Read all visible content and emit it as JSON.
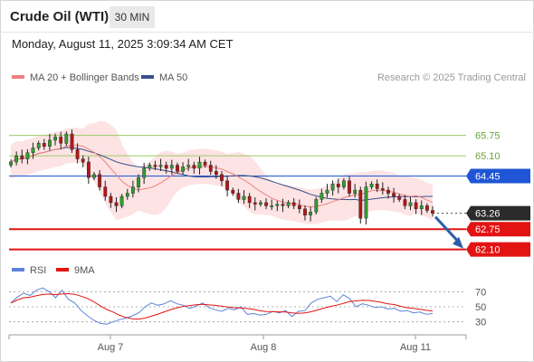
{
  "header": {
    "title": "Crude Oil (WTI)",
    "timeframe": "30 MIN",
    "datetime": "Monday, August 11, 2025 3:09:34 AM CET"
  },
  "legend": {
    "ma20_label": "MA 20 + Bollinger Bands",
    "ma50_label": "MA 50",
    "copyright": "Research © 2025 Trading Central"
  },
  "rsi_legend": {
    "rsi_label": "RSI",
    "ma_label": "9MA"
  },
  "colors": {
    "ma20": "#f08080",
    "ma50": "#3a4f8c",
    "band_fill": "#fde3e3",
    "candle_up": "#2f9e2f",
    "candle_down": "#b01818",
    "resistance": "#9ccc65",
    "pivot": "#1f55d6",
    "support": "#e31313",
    "rsi": "#5c84d6",
    "rsi_ma": "#e31313",
    "arrow": "#2a5ea8"
  },
  "chart_data": [
    {
      "type": "candlestick",
      "title": "Crude Oil (WTI)",
      "timeframe": "30 MIN",
      "ylim": [
        61.8,
        66.9
      ],
      "x_ticks": [
        "Aug 7",
        "Aug 8",
        "Aug 11"
      ],
      "close_series": [
        64.9,
        65.1,
        65.0,
        65.2,
        65.35,
        65.5,
        65.4,
        65.6,
        65.7,
        65.5,
        65.8,
        65.3,
        65.0,
        64.9,
        64.4,
        64.5,
        64.1,
        63.8,
        63.6,
        63.5,
        63.8,
        63.9,
        64.1,
        64.4,
        64.7,
        64.8,
        64.75,
        64.8,
        64.7,
        64.8,
        64.6,
        64.75,
        64.8,
        64.7,
        64.9,
        64.8,
        64.6,
        64.5,
        64.3,
        64.0,
        63.9,
        63.7,
        63.8,
        63.6,
        63.55,
        63.6,
        63.5,
        63.5,
        63.55,
        63.5,
        63.6,
        63.5,
        63.4,
        63.2,
        63.3,
        63.7,
        63.9,
        64.0,
        64.2,
        64.1,
        64.3,
        63.9,
        64.0,
        63.1,
        64.1,
        64.2,
        64.05,
        64.0,
        63.9,
        63.8,
        63.7,
        63.5,
        63.6,
        63.4,
        63.5,
        63.35,
        63.26
      ],
      "current_price": 63.26,
      "levels": [
        {
          "label": "65.75",
          "value": 65.75,
          "kind": "resistance"
        },
        {
          "label": "65.10",
          "value": 65.1,
          "kind": "resistance"
        },
        {
          "label": "64.45",
          "value": 64.45,
          "kind": "pivot"
        },
        {
          "label": "63.26",
          "value": 63.26,
          "kind": "last"
        },
        {
          "label": "62.75",
          "value": 62.75,
          "kind": "support"
        },
        {
          "label": "62.10",
          "value": 62.1,
          "kind": "support"
        }
      ],
      "series": [
        {
          "name": "MA 20 + Bollinger Bands"
        },
        {
          "name": "MA 50"
        }
      ],
      "forecast_arrow": {
        "from": 63.26,
        "to": 62.1
      }
    },
    {
      "type": "line",
      "title": "RSI",
      "ylim": [
        20,
        80
      ],
      "y_ticks": [
        70,
        50,
        30
      ],
      "rsi": [
        55,
        63,
        68,
        65,
        72,
        75,
        70,
        62,
        72,
        60,
        55,
        45,
        38,
        32,
        28,
        27,
        30,
        33,
        35,
        38,
        42,
        50,
        55,
        52,
        54,
        58,
        54,
        52,
        48,
        51,
        55,
        49,
        46,
        44,
        48,
        46,
        50,
        40,
        41,
        39,
        40,
        44,
        42,
        45,
        37,
        44,
        45,
        55,
        60,
        62,
        64,
        57,
        66,
        61,
        50,
        54,
        52,
        49,
        50,
        47,
        48,
        44,
        45,
        42,
        43,
        40,
        41
      ],
      "series": [
        {
          "name": "RSI"
        },
        {
          "name": "9MA"
        }
      ]
    }
  ]
}
